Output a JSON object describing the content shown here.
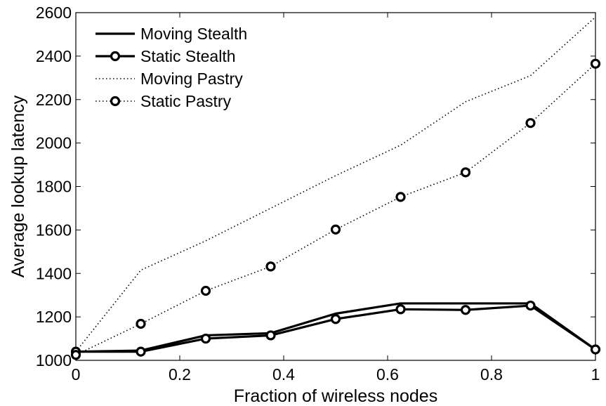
{
  "chart_data": {
    "type": "line",
    "title": "",
    "xlabel": "Fraction of wireless nodes",
    "ylabel": "Average lookup latency",
    "xlim": [
      0,
      1
    ],
    "ylim": [
      1000,
      2600
    ],
    "x_ticks": [
      0,
      0.2,
      0.4,
      0.6,
      0.8,
      1
    ],
    "x_tick_labels": [
      "0",
      "0.2",
      "0.4",
      "0.6",
      "0.8",
      "1"
    ],
    "y_ticks": [
      1000,
      1200,
      1400,
      1600,
      1800,
      2000,
      2200,
      2400,
      2600
    ],
    "y_tick_labels": [
      "1000",
      "1200",
      "1400",
      "1600",
      "1800",
      "2000",
      "2200",
      "2400",
      "2600"
    ],
    "grid": false,
    "legend_position": "top-left",
    "x": [
      0,
      0.125,
      0.25,
      0.375,
      0.5,
      0.625,
      0.75,
      0.875,
      1
    ],
    "series": [
      {
        "name": "Moving Stealth",
        "values": [
          1040,
          1045,
          1115,
          1125,
          1215,
          1262,
          1262,
          1262,
          1050
        ],
        "style": "solid",
        "marker": "none",
        "color": "#000000"
      },
      {
        "name": "Static Stealth",
        "values": [
          1040,
          1040,
          1100,
          1115,
          1190,
          1235,
          1232,
          1252,
          1050
        ],
        "style": "solid",
        "marker": "circle",
        "color": "#000000"
      },
      {
        "name": "Moving Pastry",
        "values": [
          1040,
          1415,
          1550,
          1700,
          1850,
          1990,
          2190,
          2310,
          2580
        ],
        "style": "dotted",
        "marker": "none",
        "color": "#000000"
      },
      {
        "name": "Static Pastry",
        "values": [
          1025,
          1168,
          1320,
          1432,
          1602,
          1752,
          1865,
          2092,
          2365
        ],
        "style": "dotted",
        "marker": "circle",
        "color": "#000000"
      }
    ]
  }
}
